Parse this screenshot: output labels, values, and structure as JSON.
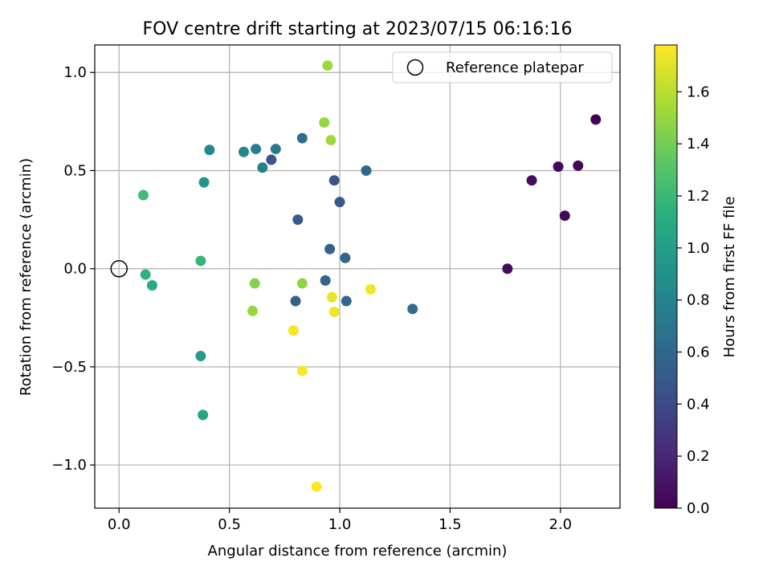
{
  "chart_data": {
    "type": "scatter",
    "title": "FOV centre drift starting at 2023/07/15 06:16:16",
    "xlabel": "Angular distance from reference (arcmin)",
    "ylabel": "Rotation from reference (arcmin)",
    "xlim": [
      -0.11,
      2.27
    ],
    "ylim": [
      -1.22,
      1.14
    ],
    "x_ticks": [
      0.0,
      0.5,
      1.0,
      1.5,
      2.0
    ],
    "x_tick_labels": [
      "0.0",
      "0.5",
      "1.0",
      "1.5",
      "2.0"
    ],
    "y_ticks": [
      -1.0,
      -0.5,
      0.0,
      0.5,
      1.0
    ],
    "y_tick_labels": [
      "−1.0",
      "−0.5",
      "0.0",
      "0.5",
      "1.0"
    ],
    "grid": true,
    "colormap": "viridis",
    "colorbar": {
      "label": "Hours from first FF file",
      "range": [
        0.0,
        1.78
      ],
      "ticks": [
        0.0,
        0.2,
        0.4,
        0.6,
        0.8,
        1.0,
        1.2,
        1.4,
        1.6
      ],
      "tick_labels": [
        "0.0",
        "0.2",
        "0.4",
        "0.6",
        "0.8",
        "1.0",
        "1.2",
        "1.4",
        "1.6"
      ]
    },
    "legend": {
      "position": "top-right",
      "entries": [
        "Reference platepar"
      ]
    },
    "reference_point": {
      "x": 0.0,
      "y": 0.0,
      "label": "Reference platepar"
    },
    "points": [
      {
        "x": 2.16,
        "y": 0.76,
        "hours": 0.0
      },
      {
        "x": 2.08,
        "y": 0.525,
        "hours": 0.02
      },
      {
        "x": 1.99,
        "y": 0.52,
        "hours": 0.03
      },
      {
        "x": 1.87,
        "y": 0.45,
        "hours": 0.05
      },
      {
        "x": 2.02,
        "y": 0.27,
        "hours": 0.03
      },
      {
        "x": 1.76,
        "y": 0.0,
        "hours": 0.05
      },
      {
        "x": 0.69,
        "y": 0.555,
        "hours": 0.45
      },
      {
        "x": 0.975,
        "y": 0.45,
        "hours": 0.48
      },
      {
        "x": 1.0,
        "y": 0.34,
        "hours": 0.5
      },
      {
        "x": 0.81,
        "y": 0.25,
        "hours": 0.52
      },
      {
        "x": 0.955,
        "y": 0.1,
        "hours": 0.56
      },
      {
        "x": 1.025,
        "y": 0.055,
        "hours": 0.58
      },
      {
        "x": 0.935,
        "y": -0.06,
        "hours": 0.58
      },
      {
        "x": 0.8,
        "y": -0.165,
        "hours": 0.55
      },
      {
        "x": 1.03,
        "y": -0.165,
        "hours": 0.6
      },
      {
        "x": 1.33,
        "y": -0.205,
        "hours": 0.63
      },
      {
        "x": 1.12,
        "y": 0.5,
        "hours": 0.62
      },
      {
        "x": 0.83,
        "y": 0.665,
        "hours": 0.64
      },
      {
        "x": 0.71,
        "y": 0.61,
        "hours": 0.72
      },
      {
        "x": 0.62,
        "y": 0.61,
        "hours": 0.76
      },
      {
        "x": 0.565,
        "y": 0.595,
        "hours": 0.8
      },
      {
        "x": 0.65,
        "y": 0.515,
        "hours": 0.78
      },
      {
        "x": 0.41,
        "y": 0.605,
        "hours": 0.84
      },
      {
        "x": 0.385,
        "y": 0.44,
        "hours": 0.92
      },
      {
        "x": 0.37,
        "y": -0.445,
        "hours": 0.98
      },
      {
        "x": 0.38,
        "y": -0.745,
        "hours": 1.05
      },
      {
        "x": 0.15,
        "y": -0.085,
        "hours": 1.1
      },
      {
        "x": 0.12,
        "y": -0.03,
        "hours": 1.15
      },
      {
        "x": 0.37,
        "y": 0.04,
        "hours": 1.18
      },
      {
        "x": 0.11,
        "y": 0.375,
        "hours": 1.22
      },
      {
        "x": 0.615,
        "y": -0.075,
        "hours": 1.45
      },
      {
        "x": 0.83,
        "y": -0.075,
        "hours": 1.48
      },
      {
        "x": 0.605,
        "y": -0.215,
        "hours": 1.5
      },
      {
        "x": 0.93,
        "y": 0.745,
        "hours": 1.5
      },
      {
        "x": 0.96,
        "y": 0.655,
        "hours": 1.53
      },
      {
        "x": 0.945,
        "y": 1.035,
        "hours": 1.52
      },
      {
        "x": 0.965,
        "y": -0.145,
        "hours": 1.72
      },
      {
        "x": 0.975,
        "y": -0.22,
        "hours": 1.74
      },
      {
        "x": 1.14,
        "y": -0.105,
        "hours": 1.75
      },
      {
        "x": 0.79,
        "y": -0.315,
        "hours": 1.76
      },
      {
        "x": 0.83,
        "y": -0.52,
        "hours": 1.77
      },
      {
        "x": 0.895,
        "y": -1.11,
        "hours": 1.78
      }
    ]
  }
}
